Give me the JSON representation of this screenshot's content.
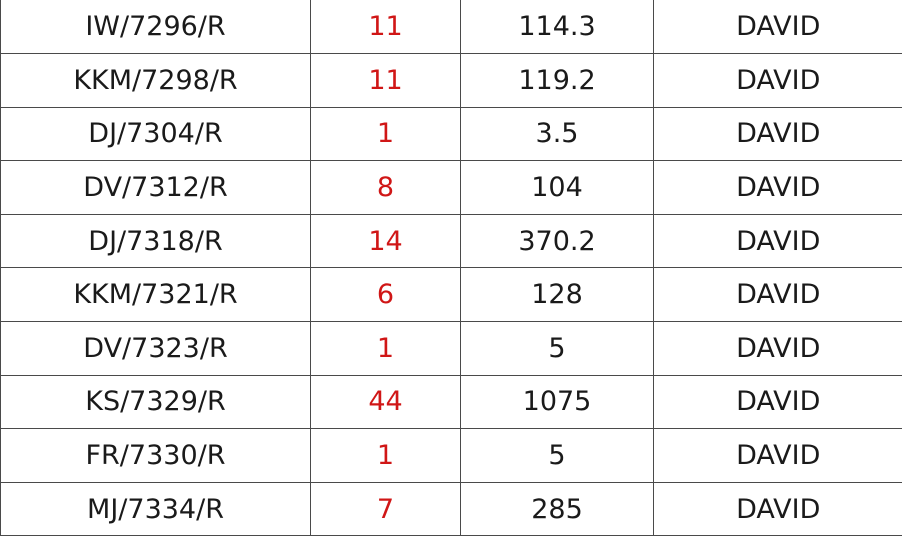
{
  "table": {
    "rows": [
      {
        "ref": "IW/7296/R",
        "count": "11",
        "value": "114.3",
        "name": "DAVID"
      },
      {
        "ref": "KKM/7298/R",
        "count": "11",
        "value": "119.2",
        "name": "DAVID"
      },
      {
        "ref": "DJ/7304/R",
        "count": "1",
        "value": "3.5",
        "name": "DAVID"
      },
      {
        "ref": "DV/7312/R",
        "count": "8",
        "value": "104",
        "name": "DAVID"
      },
      {
        "ref": "DJ/7318/R",
        "count": "14",
        "value": "370.2",
        "name": "DAVID"
      },
      {
        "ref": "KKM/7321/R",
        "count": "6",
        "value": "128",
        "name": "DAVID"
      },
      {
        "ref": "DV/7323/R",
        "count": "1",
        "value": "5",
        "name": "DAVID"
      },
      {
        "ref": "KS/7329/R",
        "count": "44",
        "value": "1075",
        "name": "DAVID"
      },
      {
        "ref": "FR/7330/R",
        "count": "1",
        "value": "5",
        "name": "DAVID"
      },
      {
        "ref": "MJ/7334/R",
        "count": "7",
        "value": "285",
        "name": "DAVID"
      }
    ]
  },
  "colors": {
    "count_text": "#d01616",
    "text": "#1a1a1a",
    "grid": "#4a4a4a",
    "background": "#ffffff"
  }
}
